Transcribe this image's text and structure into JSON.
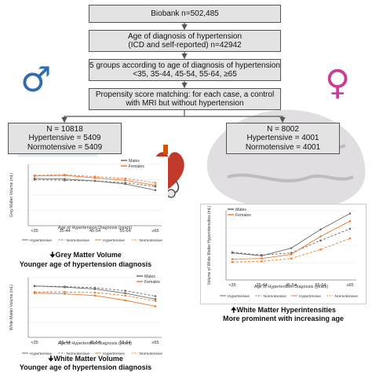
{
  "flow": {
    "biobank": "Biobank n=502,485",
    "age_diag_1": "Age of diagnosis of hypertension",
    "age_diag_2": "(ICD and self-reported) n=42942",
    "groups_1": "5 groups according to age of diagnosis of hypertension",
    "groups_2": "<35, 35-44, 45-54, 55-64, ≥65",
    "psm_1": "Propensity score matching: for each case, a control",
    "psm_2": "with MRI but without hypertension"
  },
  "male_box": {
    "n": "N = 10818",
    "hyp": "Hypertensive = 5409",
    "norm": "Normotensive = 5409"
  },
  "female_box": {
    "n": "N = 8002",
    "hyp": "Hypertensive = 4001",
    "norm": "Normotensive = 4001"
  },
  "symbols": {
    "male": "♂",
    "female": "♀",
    "male_color": "#2f6cb0",
    "female_color": "#cc3d97"
  },
  "colors": {
    "males": "#6c6c6c",
    "females": "#ee7d31",
    "box_bg": "#e3e3e3"
  },
  "captions": {
    "gm_line1": "Grey Matter Volume",
    "gm_line2": "Younger age of hypertension diagnosis",
    "wm_line1": "White Matter Volume",
    "wm_line2": "Younger age of hypertension diagnosis",
    "wmh_line1": "White Matter Hyperintensities",
    "wmh_line2": "More prominent with increasing age"
  },
  "chart_data": [
    {
      "type": "line",
      "id": "gm",
      "ylabel": "Grey Matter Volume (mL)",
      "xlabel": "Age of Hypertension Diagnosis (years)",
      "categories": [
        "<35",
        "35-44",
        "45-54",
        "55-64",
        "≥65"
      ],
      "ylim": [
        0,
        10
      ],
      "legend_top": [
        "Males",
        "Females"
      ],
      "legend_bottom": [
        "Hypertensive",
        "Normotensive",
        "Hypertensive",
        "Normotensive"
      ],
      "series": [
        {
          "sex": "females",
          "status": "normotensive",
          "values": [
            8.2,
            8.3,
            8.0,
            7.7,
            7.0
          ]
        },
        {
          "sex": "females",
          "status": "hypertensive",
          "values": [
            8.1,
            8.2,
            7.8,
            7.4,
            6.6
          ]
        },
        {
          "sex": "males",
          "status": "normotensive",
          "values": [
            7.5,
            7.4,
            7.3,
            7.0,
            6.4
          ]
        },
        {
          "sex": "males",
          "status": "hypertensive",
          "values": [
            7.7,
            7.6,
            7.3,
            6.8,
            5.8
          ]
        }
      ]
    },
    {
      "type": "line",
      "id": "wm",
      "ylabel": "White Matter Volume (mL)",
      "xlabel": "Age of Hypertension Diagnosis (years)",
      "categories": [
        "<35",
        "35-44",
        "45-54",
        "55-64",
        "≥65"
      ],
      "ylim": [
        0,
        10
      ],
      "legend_top": [
        "Males",
        "Females"
      ],
      "legend_bottom": [
        "Hypertensive",
        "Normotensive",
        "Hypertensive",
        "Normotensive"
      ],
      "series": [
        {
          "sex": "males",
          "status": "normotensive",
          "values": [
            8.6,
            8.5,
            8.3,
            7.8,
            6.9
          ]
        },
        {
          "sex": "males",
          "status": "hypertensive",
          "values": [
            8.6,
            8.4,
            8.1,
            7.4,
            6.4
          ]
        },
        {
          "sex": "females",
          "status": "normotensive",
          "values": [
            7.6,
            7.6,
            7.5,
            7.0,
            6.1
          ]
        },
        {
          "sex": "females",
          "status": "hypertensive",
          "values": [
            7.4,
            7.3,
            7.0,
            6.2,
            5.2
          ]
        }
      ]
    },
    {
      "type": "line",
      "id": "wmh",
      "ylabel": "Volume of White Matter Hyperintensities (mL)",
      "xlabel": "Age of Hypertension Diagnosis (years)",
      "categories": [
        "<35",
        "35-44",
        "45-54",
        "55-64",
        "≥65"
      ],
      "ylim": [
        0,
        10
      ],
      "legend_top": [
        "Males",
        "Females"
      ],
      "legend_bottom": [
        "Hypertensive",
        "Normotensive",
        "Hypertensive",
        "Normotensive"
      ],
      "series": [
        {
          "sex": "males",
          "status": "hypertensive",
          "values": [
            3.9,
            3.5,
            4.6,
            7.3,
            9.6
          ]
        },
        {
          "sex": "males",
          "status": "normotensive",
          "values": [
            4.0,
            3.6,
            3.9,
            5.7,
            7.4
          ]
        },
        {
          "sex": "females",
          "status": "hypertensive",
          "values": [
            3.0,
            3.1,
            3.7,
            6.3,
            8.5
          ]
        },
        {
          "sex": "females",
          "status": "normotensive",
          "values": [
            2.6,
            2.7,
            3.1,
            4.4,
            6.0
          ]
        }
      ]
    }
  ]
}
